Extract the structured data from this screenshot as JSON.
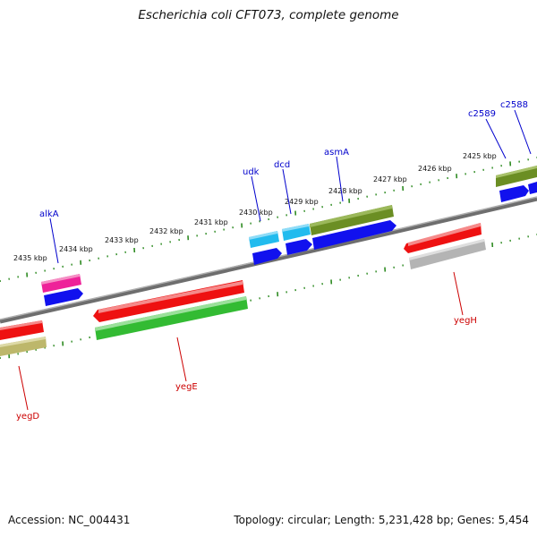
{
  "title": "Escherichia coli CFT073, complete genome",
  "footer": {
    "accession": "Accession: NC_004431",
    "summary": "Topology: circular; Length: 5,231,428 bp; Genes: 5,454"
  },
  "colors": {
    "backbone": "#808080",
    "tick": "#2e8b22",
    "label_forward": "#0000cc",
    "label_reverse": "#cc0000",
    "gene_red": "#ee1111",
    "gene_green": "#33bb33",
    "gene_olive": "#6b8e23",
    "gene_blue": "#1111ee",
    "gene_cyan": "#22bbee",
    "gene_magenta": "#ee2299",
    "gene_khaki": "#bdb76b",
    "gene_gray": "#b4b4b4"
  },
  "kbp_labels": [
    "2435 kbp",
    "2434 kbp",
    "2433 kbp",
    "2432 kbp",
    "2431 kbp",
    "2430 kbp",
    "2429 kbp",
    "2428 kbp",
    "2427 kbp",
    "2426 kbp",
    "2425 kbp"
  ],
  "gene_labels": {
    "forward": [
      "alkA",
      "udk",
      "dcd",
      "asmA",
      "c2589",
      "c2588"
    ],
    "reverse": [
      "yegD",
      "yegE",
      "yegH"
    ]
  }
}
